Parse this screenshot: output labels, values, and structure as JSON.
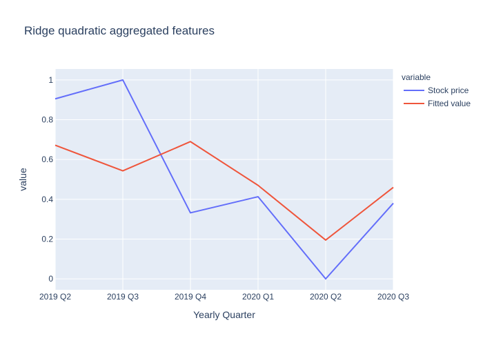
{
  "chart_data": {
    "type": "line",
    "title": "Ridge quadratic aggregated features",
    "xlabel": "Yearly Quarter",
    "ylabel": "value",
    "categories": [
      "2019 Q2",
      "2019 Q3",
      "2019 Q4",
      "2020 Q1",
      "2020 Q2",
      "2020 Q3"
    ],
    "ylim": [
      -0.055,
      1.055
    ],
    "yticks": [
      0,
      0.2,
      0.4,
      0.6,
      0.8,
      1
    ],
    "ytick_labels": [
      "0",
      "0.2",
      "0.4",
      "0.6",
      "0.8",
      "1"
    ],
    "grid": true,
    "legend": {
      "title": "variable",
      "placement": "top-right, outside plot"
    },
    "series": [
      {
        "name": "Stock price",
        "color": "#636efa",
        "values": [
          0.905,
          1.0,
          0.332,
          0.413,
          0.0,
          0.38
        ]
      },
      {
        "name": "Fitted value",
        "color": "#ef553b",
        "values": [
          0.672,
          0.543,
          0.69,
          0.47,
          0.195,
          0.46
        ]
      }
    ]
  }
}
